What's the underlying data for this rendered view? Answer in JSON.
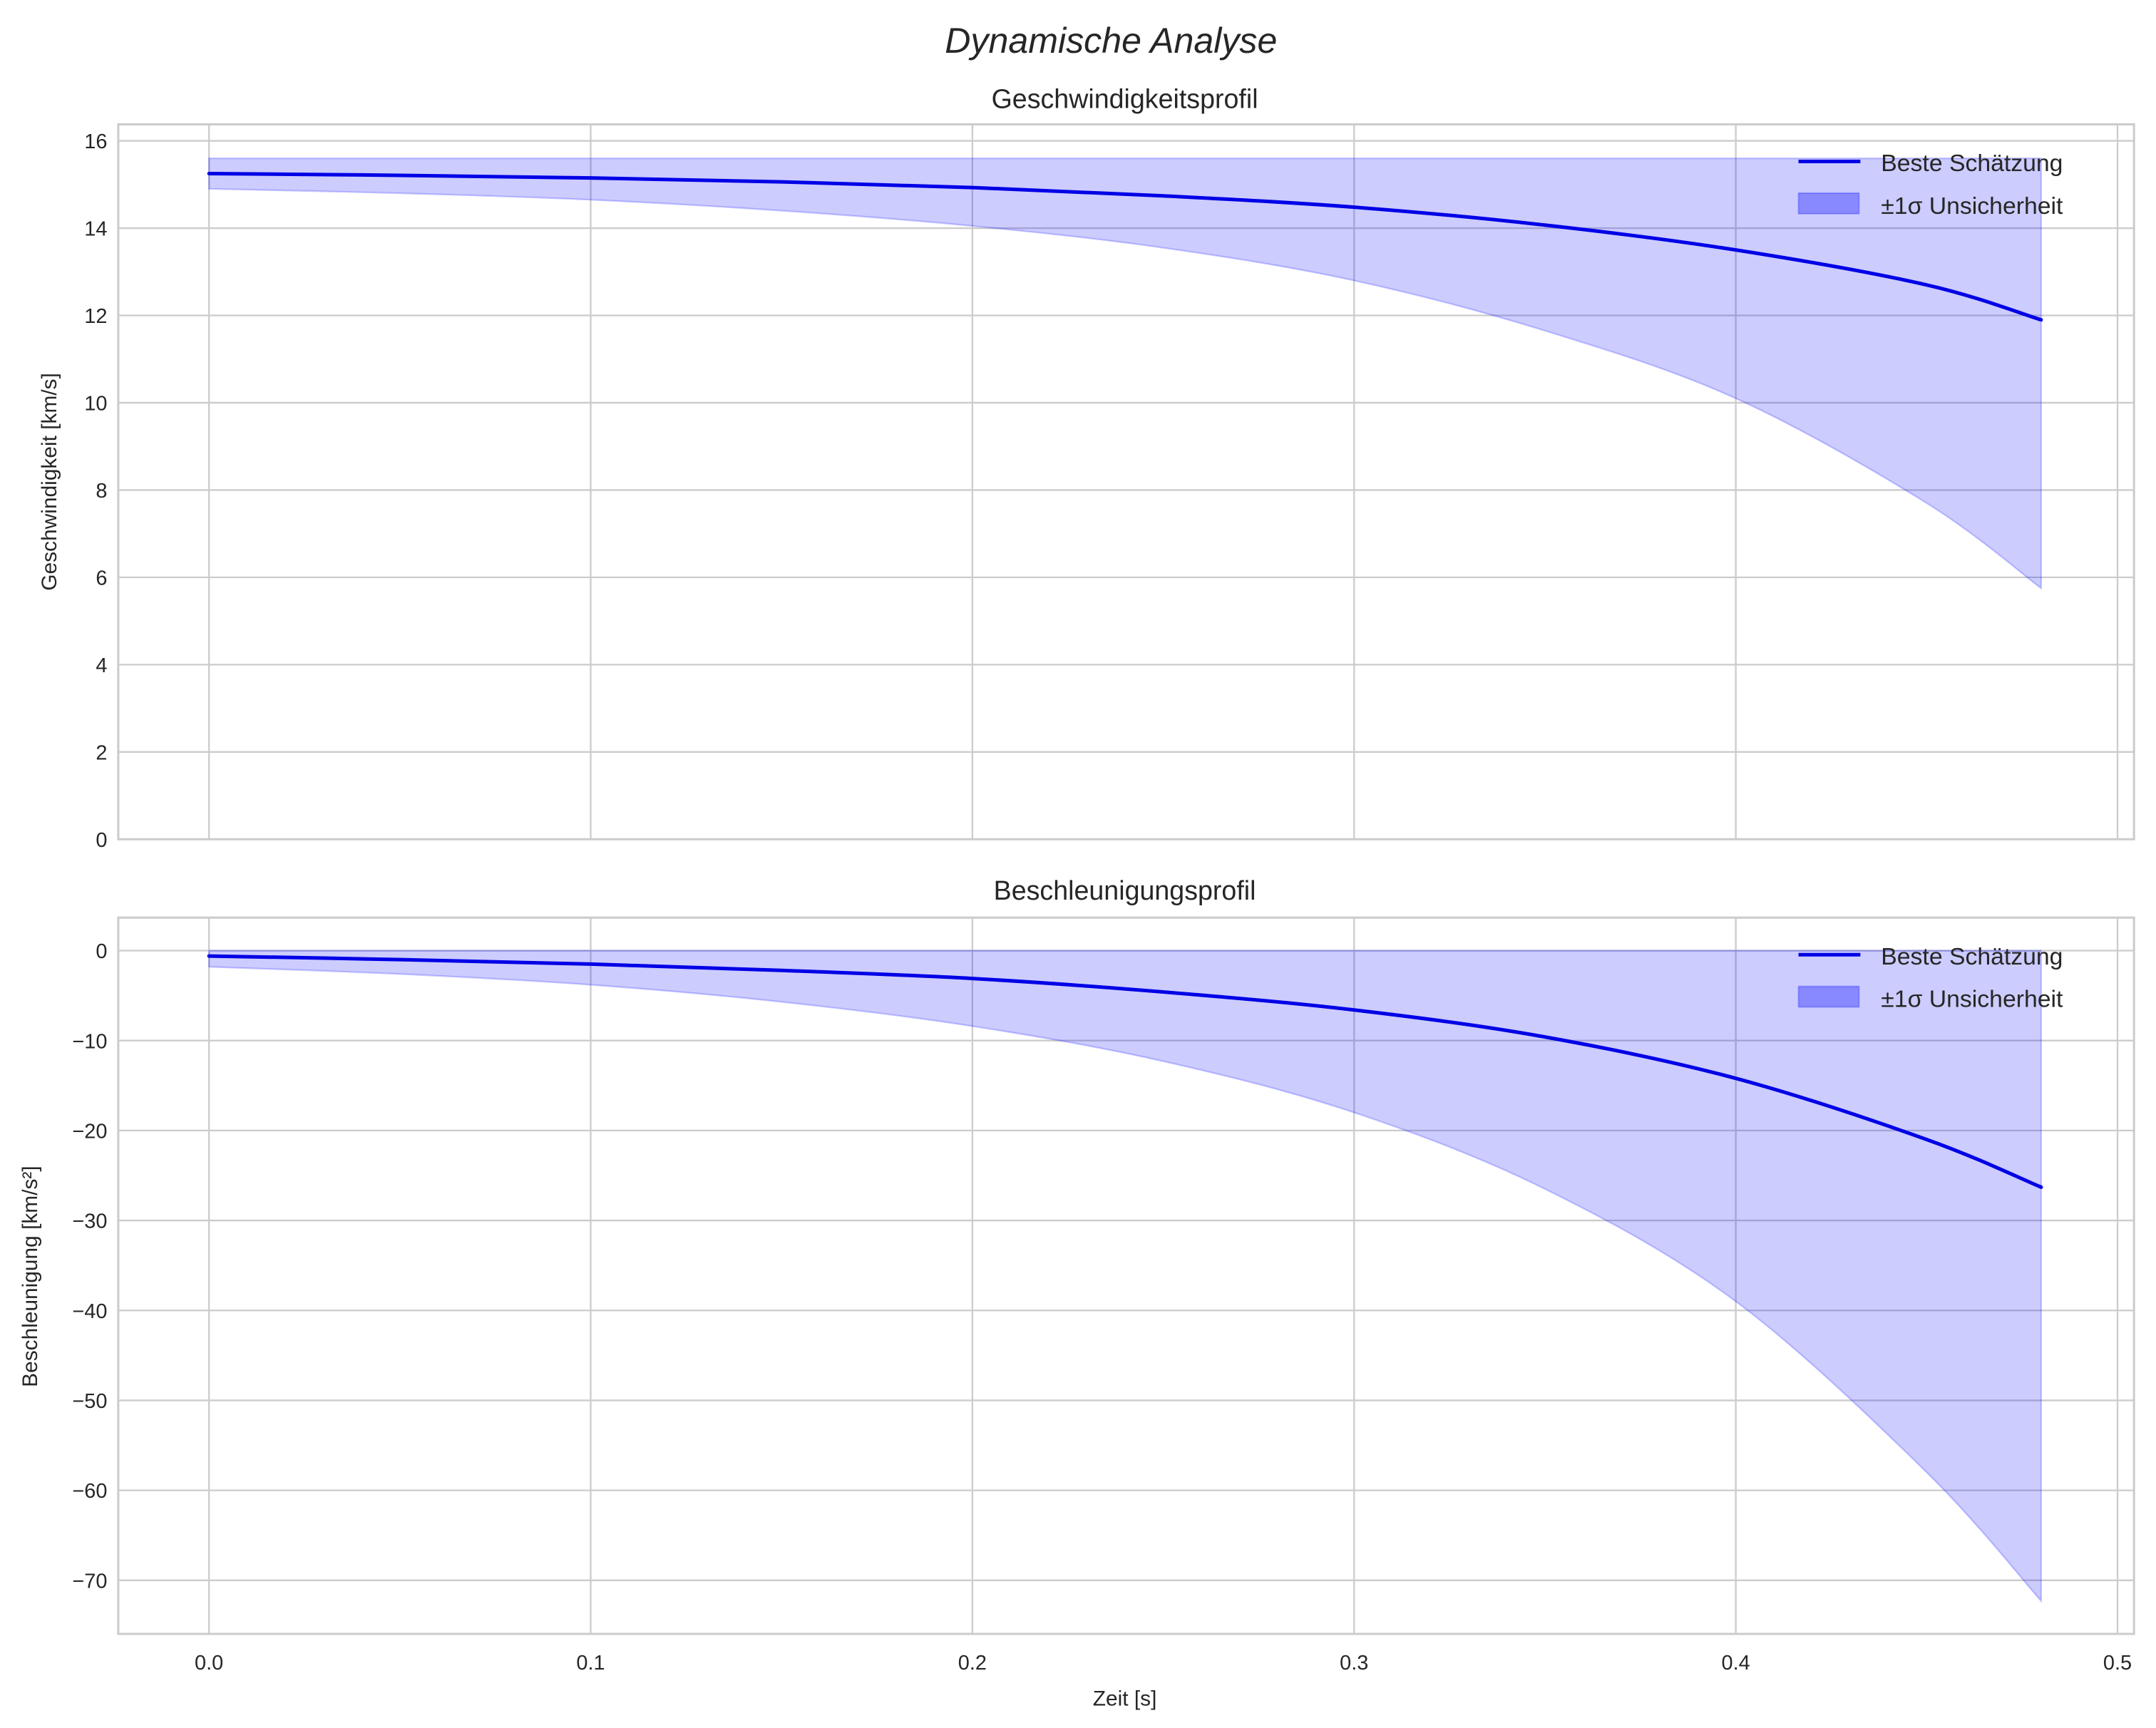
{
  "figure": {
    "title": "Dynamische Analyse",
    "xlabel": "Zeit [s]"
  },
  "colors": {
    "line": "#0000e6",
    "band": "#0000ff",
    "grid": "#cccccc",
    "text": "#262626"
  },
  "legend": {
    "line_label": "Beste Schätzung",
    "band_label": "±1σ Unsicherheit"
  },
  "panels": [
    {
      "title": "Geschwindigkeitsprofil",
      "ylabel": "Geschwindigkeit [km/s]",
      "yticks": [
        "0",
        "2",
        "4",
        "6",
        "8",
        "10",
        "12",
        "14",
        "16"
      ]
    },
    {
      "title": "Beschleunigungsprofil",
      "ylabel": "Beschleunigung [km/s²]",
      "yticks": [
        "0",
        "−10",
        "−20",
        "−30",
        "−40",
        "−50",
        "−60",
        "−70"
      ]
    }
  ],
  "xticks": [
    "0.0",
    "0.1",
    "0.2",
    "0.3",
    "0.4",
    "0.5"
  ],
  "chart_data": [
    {
      "type": "line",
      "title": "Geschwindigkeitsprofil",
      "xlabel": "",
      "ylabel": "Geschwindigkeit [km/s]",
      "xlim": [
        -0.024,
        0.504
      ],
      "ylim": [
        0,
        16.4
      ],
      "grid": true,
      "legend_position": "upper right",
      "x": [
        0.0,
        0.05,
        0.1,
        0.15,
        0.2,
        0.25,
        0.3,
        0.35,
        0.4,
        0.45,
        0.48
      ],
      "series": [
        {
          "name": "Beste Schätzung",
          "values": [
            15.25,
            15.21,
            15.15,
            15.06,
            14.93,
            14.74,
            14.48,
            14.07,
            13.5,
            12.7,
            11.9
          ]
        },
        {
          "name": "±1σ Unsicherheit (untere Grenze)",
          "values": [
            14.9,
            14.8,
            14.65,
            14.4,
            14.05,
            13.55,
            12.8,
            11.65,
            10.1,
            7.7,
            5.75
          ]
        },
        {
          "name": "±1σ Unsicherheit (obere Grenze)",
          "values": [
            15.6,
            15.6,
            15.6,
            15.6,
            15.6,
            15.6,
            15.6,
            15.6,
            15.6,
            15.6,
            15.6
          ]
        }
      ]
    },
    {
      "type": "line",
      "title": "Beschleunigungsprofil",
      "xlabel": "Zeit [s]",
      "ylabel": "Beschleunigung [km/s²]",
      "xlim": [
        -0.024,
        0.504
      ],
      "ylim": [
        -75.8,
        3.6
      ],
      "grid": true,
      "legend_position": "upper right",
      "x": [
        0.0,
        0.05,
        0.1,
        0.15,
        0.2,
        0.25,
        0.3,
        0.35,
        0.4,
        0.45,
        0.48
      ],
      "series": [
        {
          "name": "Beste Schätzung",
          "values": [
            -0.6,
            -1.0,
            -1.5,
            -2.2,
            -3.1,
            -4.6,
            -6.6,
            -9.6,
            -14.2,
            -21.0,
            -26.3
          ]
        },
        {
          "name": "±1σ Unsicherheit (untere Grenze)",
          "values": [
            -1.8,
            -2.6,
            -3.8,
            -5.7,
            -8.4,
            -12.3,
            -18.0,
            -26.5,
            -39.0,
            -58.0,
            -72.3
          ]
        },
        {
          "name": "±1σ Unsicherheit (obere Grenze)",
          "values": [
            0,
            0,
            0,
            0,
            0,
            0,
            0,
            0,
            0,
            0,
            0
          ]
        }
      ]
    }
  ]
}
